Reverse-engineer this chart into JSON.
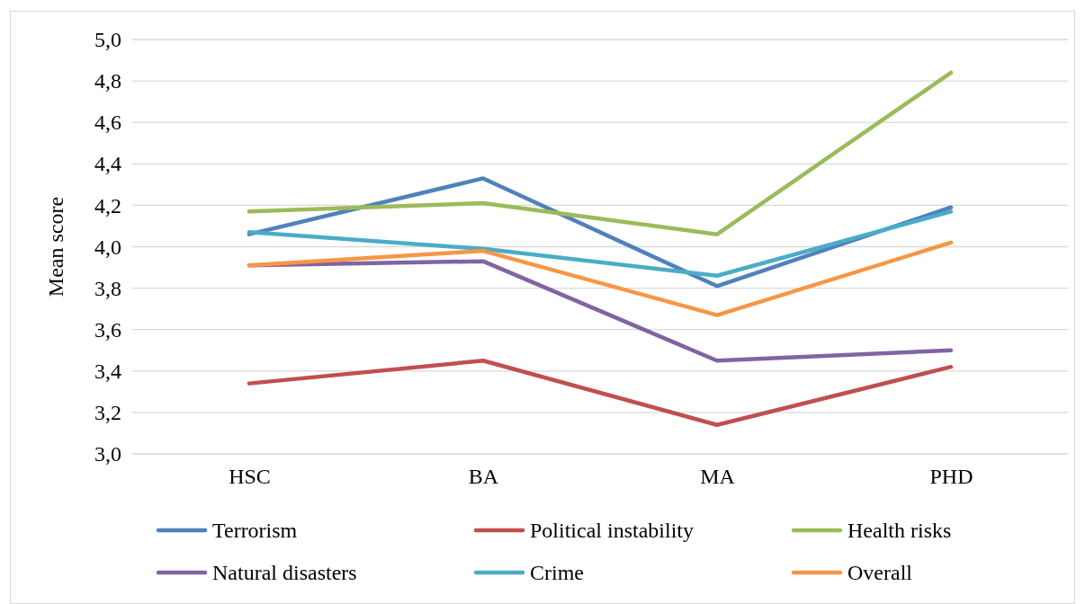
{
  "chart_data": {
    "type": "line",
    "ylabel": "Mean score",
    "categories": [
      "HSC",
      "BA",
      "MA",
      "PHD"
    ],
    "series": [
      {
        "name": "Terrorism",
        "color": "#4f81bd",
        "values": [
          4.06,
          4.33,
          3.81,
          4.19
        ]
      },
      {
        "name": "Political instability",
        "color": "#c0504d",
        "values": [
          3.34,
          3.45,
          3.14,
          3.42
        ]
      },
      {
        "name": "Health risks",
        "color": "#9bbb59",
        "values": [
          4.17,
          4.21,
          4.06,
          4.84
        ]
      },
      {
        "name": "Natural disasters",
        "color": "#8064a2",
        "values": [
          3.91,
          3.93,
          3.45,
          3.5
        ]
      },
      {
        "name": "Crime",
        "color": "#4bacc6",
        "values": [
          4.07,
          3.99,
          3.86,
          4.17
        ]
      },
      {
        "name": "Overall",
        "color": "#f79646",
        "values": [
          3.91,
          3.98,
          3.67,
          4.02
        ]
      }
    ],
    "ylim": [
      3.0,
      5.0
    ],
    "yticks": [
      {
        "value": 3.0,
        "label": "3,0"
      },
      {
        "value": 3.2,
        "label": "3,2"
      },
      {
        "value": 3.4,
        "label": "3,4"
      },
      {
        "value": 3.6,
        "label": "3,6"
      },
      {
        "value": 3.8,
        "label": "3,8"
      },
      {
        "value": 4.0,
        "label": "4,0"
      },
      {
        "value": 4.2,
        "label": "4,2"
      },
      {
        "value": 4.4,
        "label": "4,4"
      },
      {
        "value": 4.6,
        "label": "4,6"
      },
      {
        "value": 4.8,
        "label": "4,8"
      },
      {
        "value": 5.0,
        "label": "5,0"
      }
    ],
    "grid": "y",
    "legend": "bottom",
    "marker": "none",
    "line_style": "solid"
  }
}
